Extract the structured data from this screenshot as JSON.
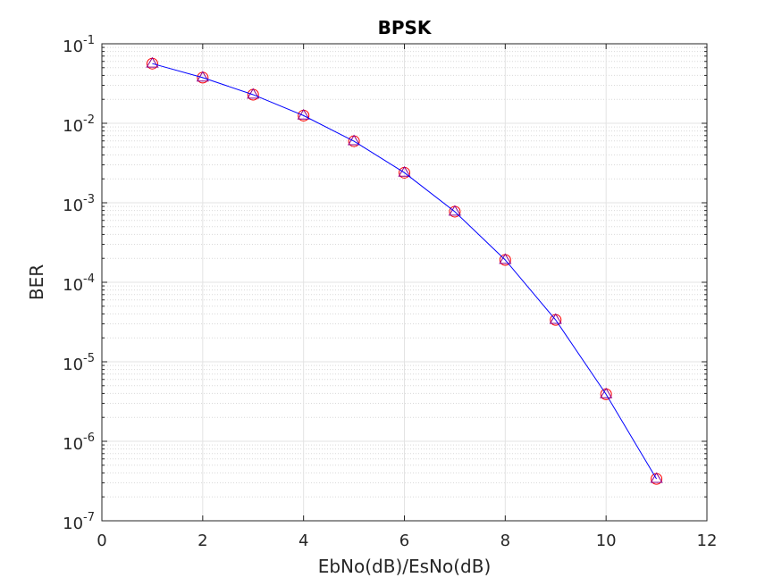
{
  "chart_data": {
    "type": "line",
    "title": "BPSK",
    "xlabel": "EbNo(dB)/EsNo(dB)",
    "ylabel": "BER",
    "xlim": [
      0,
      12
    ],
    "ylim": [
      1e-07,
      0.1
    ],
    "yscale": "log",
    "grid": true,
    "minor_grid": true,
    "x_ticks": [
      "0",
      "2",
      "4",
      "6",
      "8",
      "10",
      "12"
    ],
    "y_ticks": [
      {
        "base": "10",
        "exp": "-7"
      },
      {
        "base": "10",
        "exp": "-6"
      },
      {
        "base": "10",
        "exp": "-5"
      },
      {
        "base": "10",
        "exp": "-4"
      },
      {
        "base": "10",
        "exp": "-3"
      },
      {
        "base": "10",
        "exp": "-2"
      },
      {
        "base": "10",
        "exp": "-1"
      }
    ],
    "x": [
      1,
      2,
      3,
      4,
      5,
      6,
      7,
      8,
      9,
      10,
      11
    ],
    "series": [
      {
        "marker": "circle",
        "color": "#ff0000",
        "line": "none",
        "values": [
          0.0563,
          0.0375,
          0.0229,
          0.0125,
          0.00595,
          0.00239,
          0.000773,
          0.000191,
          3.36e-05,
          3.9e-06,
          3.36e-07
        ]
      },
      {
        "marker": "triangle",
        "color": "#8b008b",
        "line": "none",
        "values": [
          0.0563,
          0.0375,
          0.0229,
          0.0125,
          0.00595,
          0.00239,
          0.000773,
          0.000191,
          3.36e-05,
          3.9e-06,
          3.36e-07
        ]
      },
      {
        "marker": "none",
        "color": "#0000ff",
        "line": "solid",
        "values": [
          0.0563,
          0.0375,
          0.0229,
          0.0125,
          0.00595,
          0.00239,
          0.000773,
          0.000191,
          3.36e-05,
          3.9e-06,
          3.36e-07
        ]
      }
    ]
  }
}
